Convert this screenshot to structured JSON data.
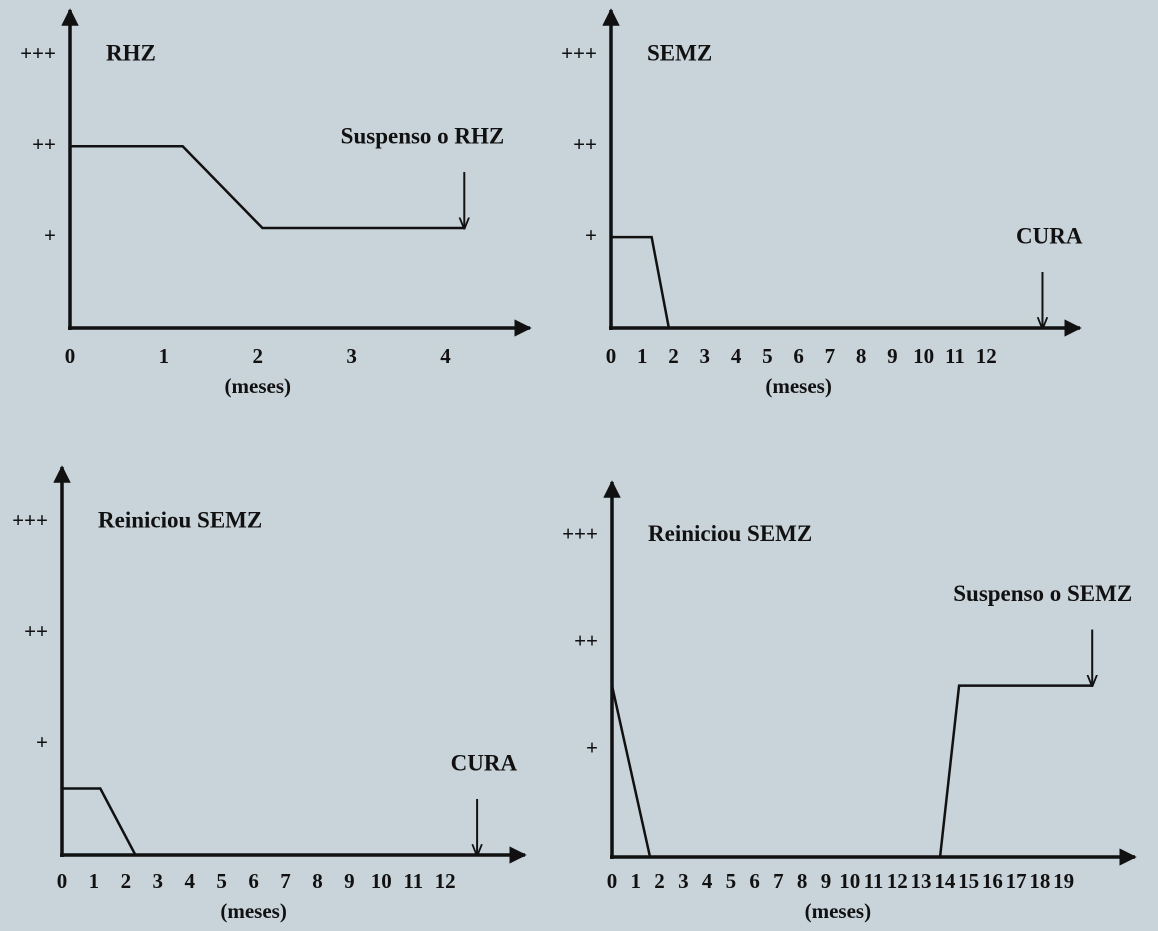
{
  "chart_data": [
    {
      "type": "line",
      "title": "RHZ",
      "x_label": "(meses)",
      "color": "#111111",
      "x": [
        0,
        1.2,
        2.05,
        4.2
      ],
      "values": [
        2,
        2,
        1.1,
        1.1
      ],
      "xlim": [
        0,
        4.9
      ],
      "ylim": [
        0,
        3.5
      ],
      "xticks": [
        0,
        1,
        2,
        3,
        4
      ],
      "yticks": [
        {
          "value": 1,
          "label": "+"
        },
        {
          "value": 2,
          "label": "++"
        },
        {
          "value": 3,
          "label": "+++"
        }
      ],
      "annotations": [
        {
          "text": "Suspenso o RHZ",
          "x": 4.2,
          "y": 1.1
        }
      ]
    },
    {
      "type": "line",
      "title": "SEMZ",
      "x_label": "(meses)",
      "color": "#111111",
      "x": [
        0,
        1.3,
        1.85,
        15
      ],
      "values": [
        1,
        1,
        0,
        0
      ],
      "xlim": [
        0,
        15
      ],
      "ylim": [
        0,
        3.5
      ],
      "xticks": [
        0,
        1,
        2,
        3,
        4,
        5,
        6,
        7,
        8,
        9,
        10,
        11,
        12
      ],
      "yticks": [
        {
          "value": 1,
          "label": "+"
        },
        {
          "value": 2,
          "label": "++"
        },
        {
          "value": 3,
          "label": "+++"
        }
      ],
      "annotations": [
        {
          "text": "CURA",
          "x": 13.8,
          "y": 0
        }
      ]
    },
    {
      "type": "line",
      "title": "Reiniciou SEMZ",
      "x_label": "(meses)",
      "color": "#111111",
      "x": [
        0,
        1.2,
        2.3,
        14.5
      ],
      "values": [
        0.6,
        0.6,
        0,
        0
      ],
      "xlim": [
        0,
        14.5
      ],
      "ylim": [
        0,
        3.5
      ],
      "xticks": [
        0,
        1,
        2,
        3,
        4,
        5,
        6,
        7,
        8,
        9,
        10,
        11,
        12
      ],
      "yticks": [
        {
          "value": 1,
          "label": "+"
        },
        {
          "value": 2,
          "label": "++"
        },
        {
          "value": 3,
          "label": "+++"
        }
      ],
      "annotations": [
        {
          "text": "CURA",
          "x": 13,
          "y": 0
        }
      ]
    },
    {
      "type": "line",
      "title": "Reiniciou SEMZ",
      "x_label": "(meses)",
      "color": "#111111",
      "x": [
        0,
        1.6,
        13.8,
        14.6,
        20.2
      ],
      "values": [
        1.6,
        0,
        0,
        1.6,
        1.6
      ],
      "xlim": [
        0,
        22
      ],
      "ylim": [
        0,
        3.5
      ],
      "xticks": [
        0,
        1,
        2,
        3,
        4,
        5,
        6,
        7,
        8,
        9,
        10,
        11,
        12,
        13,
        14,
        15,
        16,
        17,
        18,
        19
      ],
      "yticks": [
        {
          "value": 1,
          "label": "+"
        },
        {
          "value": 2,
          "label": "++"
        },
        {
          "value": 3,
          "label": "+++"
        }
      ],
      "annotations": [
        {
          "text": "Suspenso o SEMZ",
          "x": 20.2,
          "y": 1.6
        }
      ]
    }
  ]
}
